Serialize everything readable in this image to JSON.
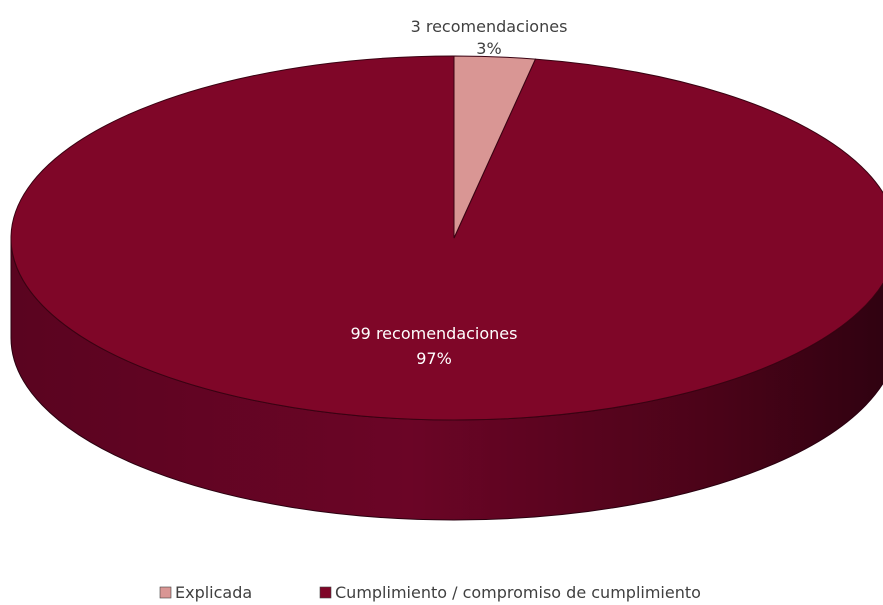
{
  "chart_data": {
    "type": "pie",
    "style": "3d",
    "slices": [
      {
        "name": "Explicada",
        "value": 3,
        "count_label": "3 recomendaciones",
        "percent_label": "3%",
        "color": "#d99694"
      },
      {
        "name": "Cumplimiento / compromiso de cumplimiento",
        "value": 99,
        "count_label": "99 recomendaciones",
        "percent_label": "97%",
        "color": "#7f0628"
      }
    ],
    "legend": {
      "placement": "bottom"
    },
    "colors": {
      "explicada": "#d99694",
      "cumplimiento": "#7f0628",
      "cumplimiento_side": "#520318",
      "label_light": "#ffffff",
      "label_dark": "#404040"
    }
  }
}
